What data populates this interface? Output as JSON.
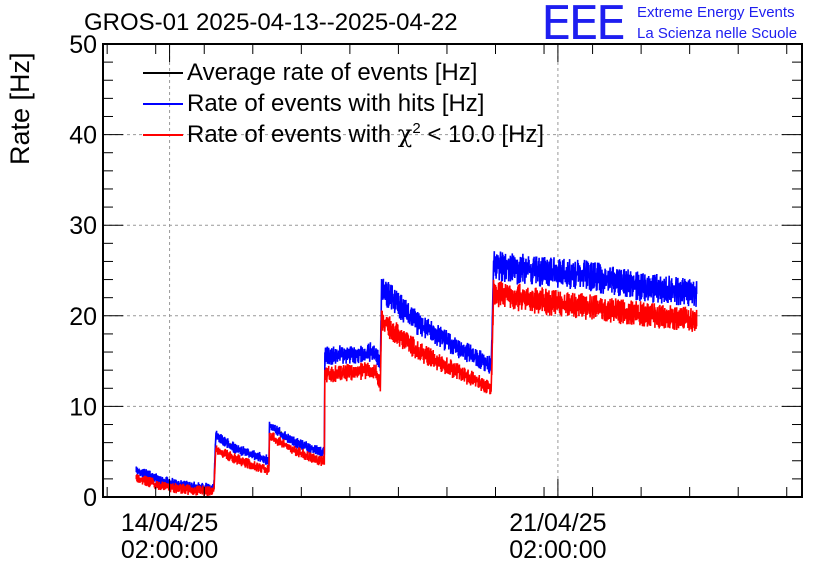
{
  "title": "GROS-01 2025-04-13--2025-04-22",
  "logo": {
    "mark": "EEE",
    "line1": "Extreme Energy Events",
    "line2": "La Scienza nelle Scuole",
    "color": "#1e1ef0"
  },
  "chart_data": {
    "type": "line",
    "ylabel": "Rate [Hz]",
    "xlabel": "",
    "ylim": [
      0,
      50
    ],
    "yticks": [
      0,
      10,
      20,
      30,
      40,
      50
    ],
    "xlim_days": [
      12.8,
      25.4
    ],
    "xticks": [
      {
        "day": 14.0,
        "line1": "14/04/25",
        "line2": "02:00:00"
      },
      {
        "day": 21.0,
        "line1": "21/04/25",
        "line2": "02:00:00"
      }
    ],
    "grid": true,
    "legend_placement": "top-left",
    "series": [
      {
        "name": "Average rate of events [Hz]",
        "color": "#000000",
        "points": [
          [
            13.4,
            3.0
          ],
          [
            13.8,
            1.9
          ],
          [
            14.3,
            1.2
          ],
          [
            14.8,
            0.9
          ],
          [
            14.83,
            6.8
          ],
          [
            15.2,
            5.3
          ],
          [
            15.8,
            4.0
          ],
          [
            15.8,
            7.9
          ],
          [
            16.2,
            6.2
          ],
          [
            16.7,
            5.0
          ],
          [
            16.8,
            5.0
          ],
          [
            16.8,
            15.5
          ],
          [
            17.3,
            15.8
          ],
          [
            17.7,
            16.0
          ],
          [
            17.8,
            14.6
          ],
          [
            17.82,
            23.0
          ],
          [
            18.5,
            19.0
          ],
          [
            19.2,
            16.5
          ],
          [
            19.8,
            14.5
          ],
          [
            19.84,
            25.5
          ],
          [
            20.5,
            25.0
          ],
          [
            21.5,
            24.5
          ],
          [
            22.5,
            23.2
          ],
          [
            23.5,
            22.5
          ]
        ]
      },
      {
        "name": "Rate of events with hits [Hz]",
        "color": "#0000ff",
        "points": [
          [
            13.4,
            3.0
          ],
          [
            13.8,
            1.9
          ],
          [
            14.3,
            1.2
          ],
          [
            14.8,
            0.9
          ],
          [
            14.83,
            6.8
          ],
          [
            15.2,
            5.3
          ],
          [
            15.8,
            4.0
          ],
          [
            15.8,
            7.9
          ],
          [
            16.2,
            6.2
          ],
          [
            16.7,
            5.0
          ],
          [
            16.8,
            5.0
          ],
          [
            16.8,
            15.5
          ],
          [
            17.3,
            15.8
          ],
          [
            17.7,
            16.0
          ],
          [
            17.8,
            14.6
          ],
          [
            17.82,
            23.0
          ],
          [
            18.5,
            19.0
          ],
          [
            19.2,
            16.5
          ],
          [
            19.8,
            14.5
          ],
          [
            19.84,
            25.5
          ],
          [
            20.5,
            25.0
          ],
          [
            21.5,
            24.5
          ],
          [
            22.5,
            23.2
          ],
          [
            23.5,
            22.5
          ]
        ]
      },
      {
        "name": "Rate of events with χ² < 10.0 [Hz]",
        "color": "#ff0000",
        "points": [
          [
            13.4,
            2.2
          ],
          [
            13.8,
            1.3
          ],
          [
            14.3,
            0.8
          ],
          [
            14.8,
            0.6
          ],
          [
            14.83,
            5.2
          ],
          [
            15.2,
            4.2
          ],
          [
            15.8,
            2.9
          ],
          [
            15.8,
            6.8
          ],
          [
            16.2,
            5.3
          ],
          [
            16.7,
            4.0
          ],
          [
            16.8,
            4.0
          ],
          [
            16.8,
            13.5
          ],
          [
            17.3,
            13.8
          ],
          [
            17.7,
            14.0
          ],
          [
            17.8,
            12.5
          ],
          [
            17.82,
            19.5
          ],
          [
            18.5,
            16.0
          ],
          [
            19.2,
            13.8
          ],
          [
            19.8,
            12.0
          ],
          [
            19.84,
            22.5
          ],
          [
            20.5,
            21.8
          ],
          [
            21.5,
            21.0
          ],
          [
            22.5,
            20.2
          ],
          [
            23.5,
            19.5
          ]
        ]
      }
    ]
  },
  "legend": [
    {
      "label_main": "Average rate of events [Hz]",
      "color": "#000000"
    },
    {
      "label_main": "Rate of events with hits [Hz]",
      "color": "#0000ff"
    },
    {
      "label_pre": "Rate of events with ",
      "label_chi": "χ",
      "label_sup": "2",
      "label_post": " < 10.0 [Hz]",
      "color": "#ff0000"
    }
  ]
}
